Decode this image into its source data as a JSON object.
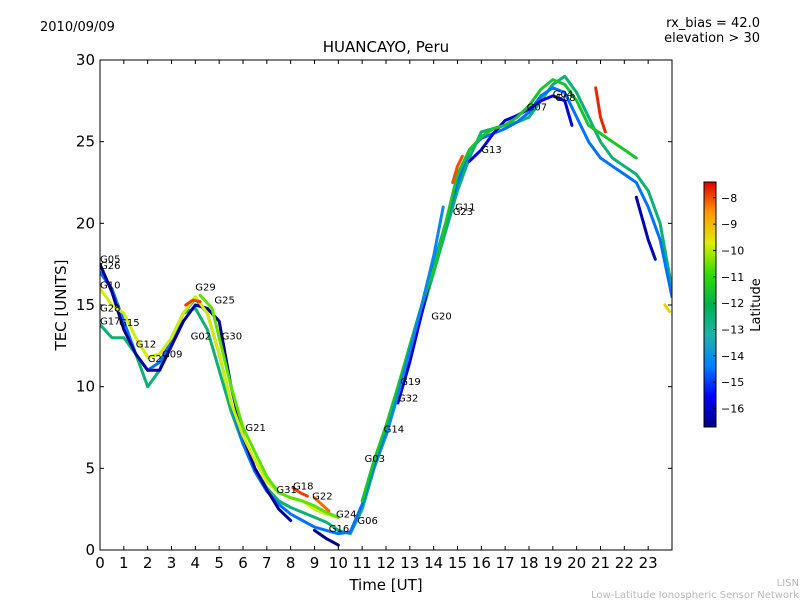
{
  "header": {
    "date": "2010/09/09",
    "bias": "rx_bias = 42.0",
    "elevation": "elevation > 30"
  },
  "footer": {
    "line1": "LISN",
    "line2": "Low-Latitude Ionospheric Sensor Network"
  },
  "chart_data": {
    "type": "line",
    "title": "HUANCAYO, Peru",
    "xlabel": "Time [UT]",
    "ylabel": "TEC [UNITS]",
    "xlim": [
      0,
      24
    ],
    "ylim": [
      0,
      30
    ],
    "xticks": [
      0,
      1,
      2,
      3,
      4,
      5,
      6,
      7,
      8,
      9,
      10,
      11,
      12,
      13,
      14,
      15,
      16,
      17,
      18,
      19,
      20,
      21,
      22,
      23
    ],
    "yticks": [
      0,
      5,
      10,
      15,
      20,
      25,
      30
    ],
    "colorbar": {
      "label": "Latitude",
      "range": [
        -16.7,
        -7.4
      ],
      "ticks": [
        -8,
        -9,
        -10,
        -11,
        -12,
        -13,
        -14,
        -15,
        -16
      ]
    },
    "series": [
      {
        "name": "main-green",
        "lat": -12.5,
        "points": [
          [
            0,
            13.8
          ],
          [
            0.5,
            13
          ],
          [
            1,
            13
          ],
          [
            1.5,
            12
          ],
          [
            2,
            10
          ],
          [
            2.5,
            11
          ],
          [
            3,
            13
          ],
          [
            3.5,
            14.5
          ],
          [
            4,
            14.8
          ],
          [
            4.5,
            13.5
          ],
          [
            5,
            11
          ],
          [
            5.5,
            8.5
          ],
          [
            6,
            6.5
          ],
          [
            6.5,
            5
          ],
          [
            7,
            3.8
          ],
          [
            7.5,
            3
          ],
          [
            8,
            2.6
          ],
          [
            8.5,
            2.3
          ],
          [
            9,
            2
          ],
          [
            9.5,
            1.7
          ],
          [
            10,
            1.2
          ],
          [
            10.5,
            1
          ],
          [
            11,
            2.5
          ],
          [
            11.5,
            5
          ],
          [
            12,
            7
          ],
          [
            12.5,
            9.5
          ],
          [
            13,
            12
          ],
          [
            13.5,
            14.5
          ],
          [
            14,
            17
          ],
          [
            14.5,
            19.5
          ],
          [
            15,
            22
          ],
          [
            15.5,
            24
          ],
          [
            16,
            25.6
          ],
          [
            16.5,
            25.8
          ],
          [
            17,
            26
          ],
          [
            17.5,
            26.2
          ],
          [
            18,
            26.5
          ],
          [
            18.5,
            27.5
          ],
          [
            19,
            28.5
          ],
          [
            19.5,
            29
          ],
          [
            20,
            28
          ],
          [
            20.5,
            26.5
          ],
          [
            21,
            25
          ],
          [
            21.5,
            24
          ],
          [
            22,
            23.5
          ],
          [
            22.5,
            23
          ],
          [
            23,
            22
          ],
          [
            23.5,
            20
          ],
          [
            24,
            16
          ]
        ]
      },
      {
        "name": "teal",
        "lat": -14.5,
        "points": [
          [
            0,
            17
          ],
          [
            0.5,
            16
          ],
          [
            1,
            14
          ],
          [
            1.5,
            12
          ],
          [
            2,
            11
          ],
          [
            2.5,
            11.5
          ],
          [
            3,
            12.8
          ],
          [
            3.5,
            14.5
          ],
          [
            4,
            15.4
          ],
          [
            4.5,
            14.5
          ],
          [
            5,
            12
          ],
          [
            5.5,
            9
          ],
          [
            6,
            6.5
          ],
          [
            6.5,
            4.8
          ],
          [
            7,
            3.6
          ],
          [
            7.5,
            2.8
          ],
          [
            8,
            2.2
          ],
          [
            8.5,
            1.8
          ],
          [
            9,
            1.4
          ],
          [
            9.5,
            1.2
          ],
          [
            10,
            1
          ],
          [
            10.5,
            1.1
          ],
          [
            11,
            2.8
          ],
          [
            11.5,
            5.2
          ],
          [
            12,
            7.2
          ],
          [
            12.5,
            9.5
          ],
          [
            13,
            12.5
          ],
          [
            13.5,
            15
          ],
          [
            14,
            17.5
          ],
          [
            14.5,
            20
          ],
          [
            15,
            22.5
          ],
          [
            15.5,
            24.5
          ],
          [
            16,
            25.2
          ],
          [
            16.5,
            25.5
          ],
          [
            17,
            25.8
          ],
          [
            17.5,
            26.2
          ],
          [
            18,
            26.8
          ],
          [
            18.5,
            27.8
          ],
          [
            19,
            28.3
          ],
          [
            19.5,
            28
          ],
          [
            20,
            26.5
          ],
          [
            20.5,
            25
          ],
          [
            21,
            24
          ],
          [
            21.5,
            23.5
          ],
          [
            22,
            23
          ],
          [
            22.5,
            22.5
          ],
          [
            23,
            21
          ],
          [
            23.5,
            19
          ],
          [
            24,
            15.5
          ]
        ]
      },
      {
        "name": "dark-blue",
        "lat": -16.5,
        "points": [
          [
            0,
            17.5
          ],
          [
            0.5,
            15.8
          ],
          [
            1,
            13.5
          ],
          [
            1.5,
            12
          ],
          [
            2,
            11
          ],
          [
            2.5,
            11
          ],
          [
            3,
            12.5
          ],
          [
            3.5,
            14
          ],
          [
            4,
            15
          ],
          [
            4.5,
            14.8
          ],
          [
            5,
            14
          ],
          [
            5.5,
            10
          ],
          [
            6,
            7
          ],
          [
            6.5,
            5
          ],
          [
            7,
            3.7
          ],
          [
            7.5,
            2.5
          ],
          [
            8,
            1.8
          ]
        ]
      },
      {
        "name": "dark-blue-late",
        "lat": -16.5,
        "points": [
          [
            9,
            1.2
          ],
          [
            9.5,
            0.7
          ],
          [
            10,
            0.3
          ]
        ]
      },
      {
        "name": "dark-blue-afternoon",
        "lat": -16.0,
        "points": [
          [
            12.5,
            9
          ],
          [
            13,
            11.5
          ],
          [
            13.5,
            14.5
          ],
          [
            14,
            17.5
          ]
        ]
      },
      {
        "name": "blue-day",
        "lat": -15.8,
        "points": [
          [
            15.5,
            23.8
          ],
          [
            16,
            24.5
          ],
          [
            16.5,
            25.5
          ],
          [
            17,
            26.3
          ],
          [
            17.5,
            26.6
          ],
          [
            18,
            27
          ],
          [
            18.5,
            27.5
          ],
          [
            19,
            27.8
          ],
          [
            19.5,
            27.5
          ],
          [
            19.8,
            26
          ]
        ]
      },
      {
        "name": "blue-evening",
        "lat": -16.2,
        "points": [
          [
            22.5,
            21.6
          ],
          [
            23,
            19
          ],
          [
            23.3,
            17.8
          ]
        ]
      },
      {
        "name": "orange",
        "lat": -9.8,
        "points": [
          [
            0,
            16
          ],
          [
            0.5,
            15
          ],
          [
            1,
            14.5
          ],
          [
            1.5,
            13
          ],
          [
            2,
            11.8
          ],
          [
            2.5,
            12
          ],
          [
            3,
            13
          ],
          [
            3.5,
            14.5
          ],
          [
            4,
            15.5
          ],
          [
            4.5,
            14.5
          ],
          [
            5,
            12
          ],
          [
            5.5,
            9
          ],
          [
            6,
            7
          ],
          [
            6.5,
            5.5
          ],
          [
            7,
            4.2
          ],
          [
            7.5,
            3.5
          ],
          [
            8,
            3.2
          ],
          [
            8.5,
            3
          ],
          [
            9,
            2.5
          ],
          [
            9.5,
            2.2
          ],
          [
            10,
            2
          ]
        ]
      },
      {
        "name": "yellow",
        "lat": -10.6,
        "points": [
          [
            4.2,
            15.6
          ],
          [
            4.7,
            14.8
          ],
          [
            5,
            13
          ],
          [
            5.5,
            10
          ],
          [
            6,
            7.5
          ],
          [
            6.5,
            6
          ],
          [
            7,
            4.5
          ],
          [
            7.5,
            3.5
          ],
          [
            8,
            3.2
          ],
          [
            8.5,
            3
          ],
          [
            9,
            2.7
          ],
          [
            9.5,
            2.3
          ],
          [
            10,
            2
          ]
        ]
      },
      {
        "name": "light-green",
        "lat": -11.5,
        "points": [
          [
            11,
            3
          ],
          [
            11.5,
            5.5
          ],
          [
            12,
            7.6
          ],
          [
            12.5,
            10
          ],
          [
            13,
            12.5
          ],
          [
            13.5,
            15
          ],
          [
            14,
            17.2
          ],
          [
            14.5,
            20
          ],
          [
            15,
            23
          ],
          [
            15.5,
            24.5
          ],
          [
            16,
            25.3
          ],
          [
            16.5,
            25.8
          ],
          [
            17,
            26
          ],
          [
            17.5,
            26.5
          ],
          [
            18,
            27.2
          ],
          [
            18.5,
            28.2
          ],
          [
            19,
            28.8
          ],
          [
            19.5,
            28.5
          ],
          [
            20,
            27.5
          ],
          [
            20.5,
            26
          ],
          [
            21,
            25.5
          ],
          [
            21.5,
            25
          ],
          [
            22,
            24.5
          ],
          [
            22.5,
            24
          ]
        ]
      },
      {
        "name": "red-evening",
        "lat": -7.7,
        "points": [
          [
            20.8,
            28.3
          ],
          [
            21,
            26.5
          ],
          [
            21.2,
            25.6
          ]
        ]
      },
      {
        "name": "red-morning",
        "lat": -7.9,
        "points": [
          [
            3.6,
            15
          ],
          [
            3.9,
            15.3
          ],
          [
            4.2,
            15.2
          ]
        ]
      },
      {
        "name": "red-G18",
        "lat": -7.9,
        "points": [
          [
            8.1,
            3.8
          ],
          [
            8.4,
            3.5
          ],
          [
            8.7,
            3.3
          ]
        ]
      },
      {
        "name": "red-G22",
        "lat": -8.2,
        "points": [
          [
            9,
            3.2
          ],
          [
            9.3,
            2.8
          ],
          [
            9.6,
            2.4
          ]
        ]
      },
      {
        "name": "red-noon",
        "lat": -8.0,
        "points": [
          [
            14.8,
            22.5
          ],
          [
            15,
            23.5
          ],
          [
            15.2,
            24.1
          ]
        ]
      },
      {
        "name": "cyan-mid",
        "lat": -14.2,
        "points": [
          [
            12,
            7
          ],
          [
            12.5,
            9.5
          ],
          [
            13,
            12.2
          ],
          [
            13.5,
            15
          ],
          [
            14,
            18
          ],
          [
            14.4,
            21
          ]
        ]
      },
      {
        "name": "orange-late",
        "lat": -9.4,
        "points": [
          [
            23.7,
            15
          ],
          [
            23.9,
            14.6
          ]
        ]
      }
    ],
    "annotations": [
      {
        "text": "G05",
        "x": 0.0,
        "y": 17.6
      },
      {
        "text": "G26",
        "x": 0.0,
        "y": 17.2
      },
      {
        "text": "G10",
        "x": 0.0,
        "y": 16.0
      },
      {
        "text": "G28",
        "x": 0.0,
        "y": 14.6
      },
      {
        "text": "G17",
        "x": 0.0,
        "y": 13.8
      },
      {
        "text": "G15",
        "x": 0.8,
        "y": 13.7
      },
      {
        "text": "G12",
        "x": 1.5,
        "y": 12.4
      },
      {
        "text": "G27",
        "x": 2.0,
        "y": 11.5
      },
      {
        "text": "G09",
        "x": 2.6,
        "y": 11.8
      },
      {
        "text": "G29",
        "x": 4.0,
        "y": 15.9
      },
      {
        "text": "G25",
        "x": 4.8,
        "y": 15.1
      },
      {
        "text": "G02",
        "x": 3.8,
        "y": 12.9
      },
      {
        "text": "G30",
        "x": 5.1,
        "y": 12.9
      },
      {
        "text": "G21",
        "x": 6.1,
        "y": 7.3
      },
      {
        "text": "G31",
        "x": 7.4,
        "y": 3.5
      },
      {
        "text": "G18",
        "x": 8.1,
        "y": 3.7
      },
      {
        "text": "G22",
        "x": 8.9,
        "y": 3.1
      },
      {
        "text": "G24",
        "x": 9.9,
        "y": 2.0
      },
      {
        "text": "G16",
        "x": 9.6,
        "y": 1.1
      },
      {
        "text": "G06",
        "x": 10.8,
        "y": 1.6
      },
      {
        "text": "G03",
        "x": 11.1,
        "y": 5.4
      },
      {
        "text": "G14",
        "x": 11.9,
        "y": 7.2
      },
      {
        "text": "G32",
        "x": 12.5,
        "y": 9.1
      },
      {
        "text": "G19",
        "x": 12.6,
        "y": 10.1
      },
      {
        "text": "G20",
        "x": 13.9,
        "y": 14.1
      },
      {
        "text": "G11",
        "x": 14.9,
        "y": 20.8
      },
      {
        "text": "G23",
        "x": 14.8,
        "y": 20.5
      },
      {
        "text": "G13",
        "x": 16.0,
        "y": 24.3
      },
      {
        "text": "G07",
        "x": 17.9,
        "y": 26.9
      },
      {
        "text": "G04",
        "x": 19.0,
        "y": 27.7
      },
      {
        "text": "G08",
        "x": 19.1,
        "y": 27.5
      }
    ]
  }
}
